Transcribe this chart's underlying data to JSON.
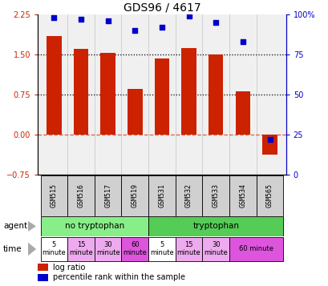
{
  "title": "GDS96 / 4617",
  "samples": [
    "GSM515",
    "GSM516",
    "GSM517",
    "GSM519",
    "GSM531",
    "GSM532",
    "GSM533",
    "GSM534",
    "GSM565"
  ],
  "log_ratio": [
    1.85,
    1.6,
    1.52,
    0.85,
    1.42,
    1.62,
    1.5,
    0.8,
    -0.38
  ],
  "percentile": [
    98,
    97,
    96,
    90,
    92,
    99,
    95,
    83,
    22
  ],
  "ylim_left": [
    -0.75,
    2.25
  ],
  "ylim_right": [
    0,
    100
  ],
  "yticks_left": [
    -0.75,
    0,
    0.75,
    1.5,
    2.25
  ],
  "yticks_right": [
    0,
    25,
    50,
    75,
    100
  ],
  "hlines": [
    0.75,
    1.5
  ],
  "bar_color": "#cc2200",
  "dot_color": "#0000cc",
  "plot_bg": "#eeeeee",
  "agent_groups": [
    {
      "label": "no tryptophan",
      "start": 0,
      "end": 4,
      "color": "#88ee88"
    },
    {
      "label": "tryptophan",
      "start": 4,
      "end": 9,
      "color": "#55cc55"
    }
  ],
  "time_groups": [
    {
      "label": "5\nminute",
      "start": 0,
      "end": 1,
      "color": "#ffffff"
    },
    {
      "label": "15\nminute",
      "start": 1,
      "end": 2,
      "color": "#eeaaee"
    },
    {
      "label": "30\nminute",
      "start": 2,
      "end": 3,
      "color": "#eeaaee"
    },
    {
      "label": "60\nminute",
      "start": 3,
      "end": 4,
      "color": "#dd55dd"
    },
    {
      "label": "5\nminute",
      "start": 4,
      "end": 5,
      "color": "#ffffff"
    },
    {
      "label": "15\nminute",
      "start": 5,
      "end": 6,
      "color": "#eeaaee"
    },
    {
      "label": "30\nminute",
      "start": 6,
      "end": 7,
      "color": "#eeaaee"
    },
    {
      "label": "60 minute",
      "start": 7,
      "end": 9,
      "color": "#dd55dd"
    }
  ],
  "legend_items": [
    {
      "label": "log ratio",
      "color": "#cc2200"
    },
    {
      "label": "percentile rank within the sample",
      "color": "#0000cc"
    }
  ]
}
